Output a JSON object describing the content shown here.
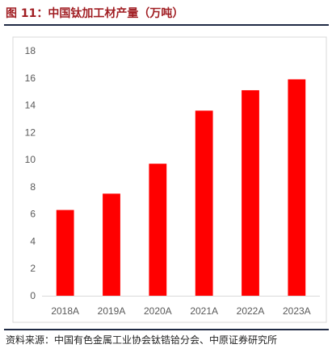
{
  "figure": {
    "title": "图 11：中国钛加工材产量（万吨）",
    "source": "资料来源：中国有色金属工业协会钛锆铪分会、中原证券研究所"
  },
  "chart_data": {
    "type": "bar",
    "title": "",
    "xlabel": "",
    "ylabel": "",
    "categories": [
      "2018A",
      "2019A",
      "2020A",
      "2021A",
      "2022A",
      "2023A"
    ],
    "values": [
      6.3,
      7.5,
      9.7,
      13.6,
      15.1,
      15.9
    ],
    "ylim": [
      0,
      18
    ],
    "yticks": [
      0,
      2,
      4,
      6,
      8,
      10,
      12,
      14,
      16,
      18
    ],
    "grid": false,
    "legend": "none",
    "bar_color": "#ff0000"
  }
}
